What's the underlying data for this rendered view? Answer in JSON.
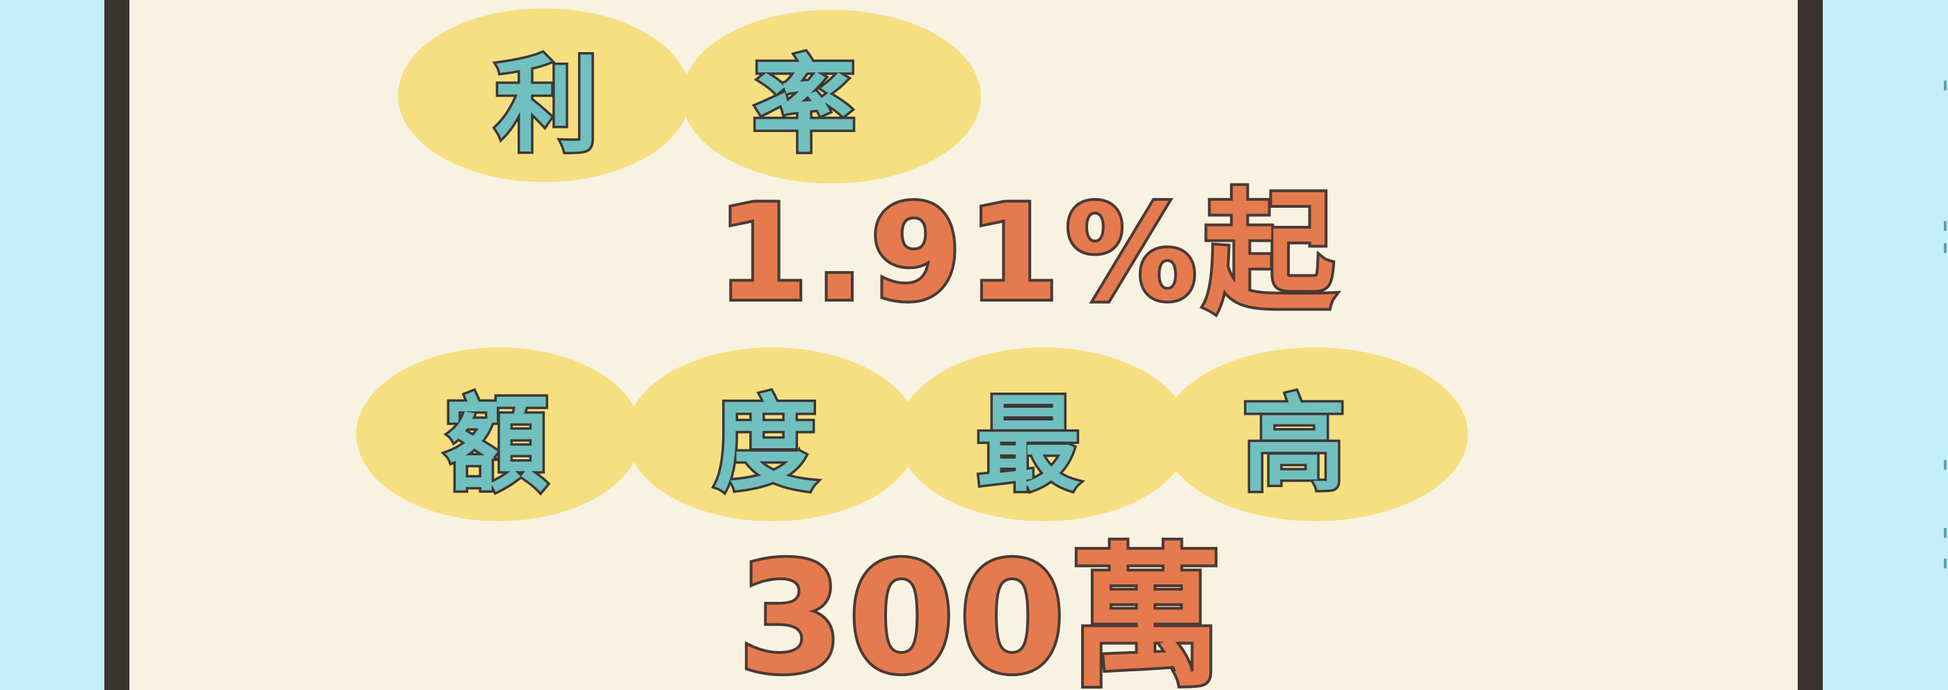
{
  "rate": {
    "label_chars": [
      "利",
      "率"
    ],
    "value": "1.91%起"
  },
  "limit": {
    "label_chars": [
      "額",
      "度",
      "最",
      "高"
    ],
    "value": "300萬"
  },
  "colors": {
    "background": "#C5EEFB",
    "card": "#F8F2E2",
    "frame": "#3B3330",
    "bubble": "#F6DF80",
    "label_text": "#70C0C0",
    "value_text": "#E57A4E",
    "outline": "#3E3735"
  }
}
